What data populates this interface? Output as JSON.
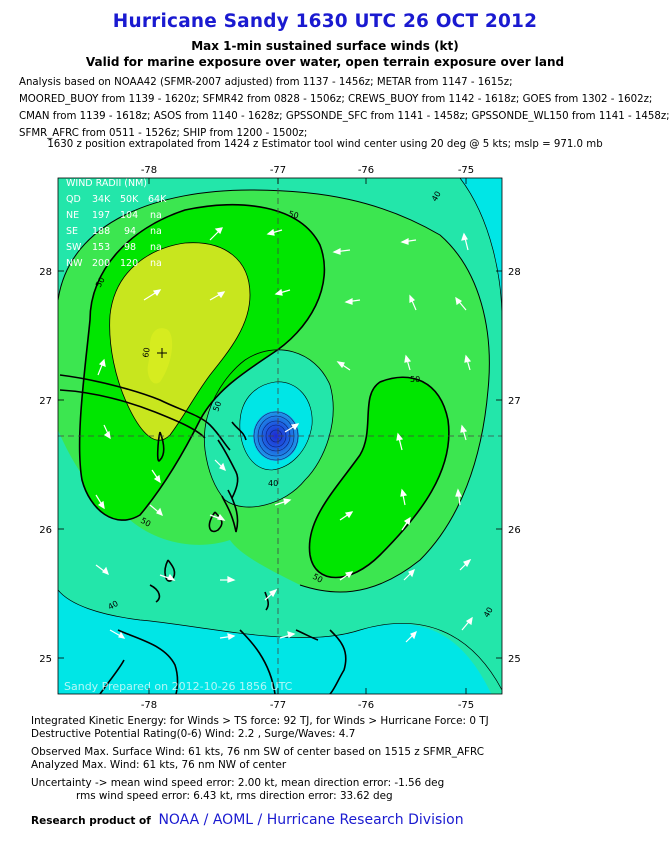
{
  "title": "Hurricane Sandy 1630 UTC 26 OCT 2012",
  "subtitle1": "Max 1-min sustained surface winds (kt)",
  "subtitle2": "Valid for marine exposure over water, open terrain exposure over land",
  "analysis_lines": [
    "Analysis based on NOAA42 (SFMR-2007 adjusted) from 1137 - 1456z; METAR from 1147 - 1615z;",
    "MOORED_BUOY from 1139 - 1620z; SFMR42 from 0828 - 1506z; CREWS_BUOY from 1142 - 1618z; GOES from 1302 - 1602z;",
    "CMAN from 1139 - 1618z; ASOS from 1140 - 1628z; GPSSONDE_SFC from 1141 - 1458z; GPSSONDE_WL150 from 1141 - 1458z;",
    "SFMR_AFRC from 0511 - 1526z; SHIP from 1200 - 1500z;"
  ],
  "position_note": "1630 z position extrapolated from 1424 z Estimator tool wind center using 20 deg @ 5 kts; mslp = 971.0 mb",
  "map": {
    "lon_ticks_top": [
      "-78",
      "-77",
      "-76",
      "-75"
    ],
    "lon_ticks_bottom": [
      "-78",
      "-77",
      "-76",
      "-75"
    ],
    "lat_ticks_left": [
      "28",
      "27",
      "26",
      "25"
    ],
    "lat_ticks_right": [
      "28",
      "27",
      "26",
      "25"
    ],
    "contour_labels": [
      "50",
      "50",
      "50",
      "40",
      "40",
      "40",
      "50",
      "60",
      "50",
      "50",
      "40",
      "50",
      "50",
      "40",
      "40"
    ],
    "wind_radii": {
      "heading": "WIND RADII (NM)",
      "header": [
        "QD",
        "34K",
        "50K",
        "64K"
      ],
      "rows": [
        [
          "NE",
          "197",
          "104",
          "na"
        ],
        [
          "SE",
          "188",
          "94",
          "na"
        ],
        [
          "SW",
          "153",
          "98",
          "na"
        ],
        [
          "NW",
          "200",
          "120",
          "na"
        ]
      ]
    },
    "watermark": "Sandy   Prepared on 2012-10-26 1856 UTC",
    "colors": {
      "land": "#000000",
      "max_wind_zone": "#c8e61e",
      "high_wind_zone": "#00e600",
      "moderate_wind_zone": "#3ce650",
      "background_wind_zone": "#23e6aa",
      "outer_zone": "#00e6e6",
      "core": "#1e46dc"
    }
  },
  "footer": {
    "ike": "Integrated Kinetic Energy: for Winds > TS force: 92 TJ, for Winds > Hurricane Force: 0 TJ",
    "rating": "Destructive Potential Rating(0-6)  Wind: 2.2 , Surge/Waves: 4.7",
    "observed": "Observed Max. Surface Wind: 61 kts, 76 nm SW of center based on 1515 z SFMR_AFRC",
    "analyzed": "Analyzed Max. Wind: 61 kts, 76 nm  NW of center",
    "uncertainty": "Uncertainty -> mean wind speed error: 2.00 kt, mean direction error:  -1.56 deg",
    "rms": "rms wind speed error: 6.43 kt, rms direction error: 33.62 deg"
  },
  "credit": {
    "prefix": "Research product of",
    "org": "NOAA  /  AOML  /  Hurricane Research Division"
  }
}
